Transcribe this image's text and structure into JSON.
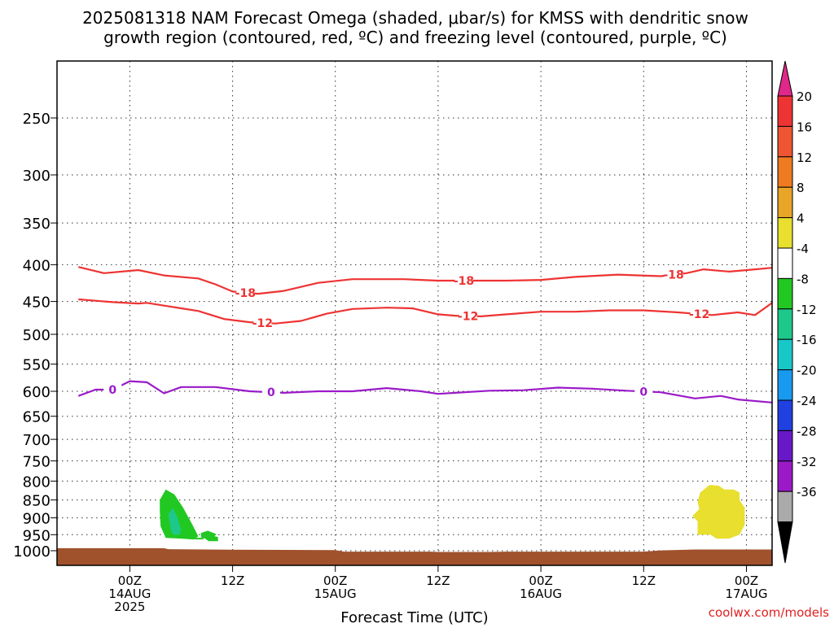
{
  "chart_data": {
    "type": "contour",
    "title_line1": "2025081318 NAM Forecast Omega (shaded, μbar/s) for KMSS with dendritic snow",
    "title_line2": "growth region (contoured, red, ºC) and freezing level (contoured, purple, ºC)",
    "xlabel": "Forecast Time (UTC)",
    "ylabel": "",
    "credit": "coolwx.com/models",
    "x_range_hours": [
      -8.5,
      75
    ],
    "y_log_scale": true,
    "y_range_hpa": [
      200,
      1030
    ],
    "grid": true,
    "y_ticks": [
      250,
      300,
      350,
      400,
      450,
      500,
      550,
      600,
      650,
      700,
      750,
      800,
      850,
      900,
      950,
      1000
    ],
    "x_ticks": [
      {
        "hour": 0,
        "line1": "00Z",
        "line2": "14AUG",
        "line3": "2025"
      },
      {
        "hour": 12,
        "line1": "12Z",
        "line2": "",
        "line3": ""
      },
      {
        "hour": 24,
        "line1": "00Z",
        "line2": "15AUG",
        "line3": ""
      },
      {
        "hour": 36,
        "line1": "12Z",
        "line2": "",
        "line3": ""
      },
      {
        "hour": 48,
        "line1": "00Z",
        "line2": "16AUG",
        "line3": ""
      },
      {
        "hour": 60,
        "line1": "12Z",
        "line2": "",
        "line3": ""
      },
      {
        "hour": 72,
        "line1": "00Z",
        "line2": "17AUG",
        "line3": ""
      }
    ],
    "series": [
      {
        "label": "-18",
        "color": "#ee3333",
        "label_hours": [
          13.5,
          39,
          63.5
        ],
        "points": [
          [
            -6,
            403
          ],
          [
            -3,
            411
          ],
          [
            1,
            407
          ],
          [
            4,
            414
          ],
          [
            8,
            418
          ],
          [
            10,
            426
          ],
          [
            12,
            436
          ],
          [
            15,
            439
          ],
          [
            18,
            435
          ],
          [
            22,
            424
          ],
          [
            26,
            419
          ],
          [
            32,
            419
          ],
          [
            36,
            421
          ],
          [
            40,
            421
          ],
          [
            44,
            421
          ],
          [
            48,
            420
          ],
          [
            52,
            416
          ],
          [
            57,
            413
          ],
          [
            62,
            415
          ],
          [
            65,
            411
          ],
          [
            67,
            406
          ],
          [
            70,
            409
          ],
          [
            73,
            406
          ],
          [
            75,
            404
          ]
        ]
      },
      {
        "label": "-12",
        "color": "#ee3333",
        "label_hours": [
          15.5,
          39.5,
          66.5
        ],
        "points": [
          [
            -6,
            447
          ],
          [
            -2,
            451
          ],
          [
            1,
            453
          ],
          [
            2,
            452
          ],
          [
            4,
            456
          ],
          [
            6,
            460
          ],
          [
            8,
            464
          ],
          [
            11,
            476
          ],
          [
            14,
            481
          ],
          [
            17,
            483
          ],
          [
            20,
            479
          ],
          [
            23,
            468
          ],
          [
            26,
            461
          ],
          [
            30,
            459
          ],
          [
            33,
            460
          ],
          [
            36,
            469
          ],
          [
            38,
            471
          ],
          [
            41,
            472
          ],
          [
            44,
            469
          ],
          [
            48,
            465
          ],
          [
            52,
            465
          ],
          [
            56,
            463
          ],
          [
            60,
            463
          ],
          [
            64,
            466
          ],
          [
            68,
            470
          ],
          [
            71,
            466
          ],
          [
            73,
            470
          ],
          [
            75,
            452
          ]
        ]
      },
      {
        "label": "0",
        "color": "#9a1ac8",
        "label_hours": [
          -2,
          16.5,
          60
        ],
        "points": [
          [
            -6,
            609
          ],
          [
            -4,
            597
          ],
          [
            -2,
            597
          ],
          [
            0,
            581
          ],
          [
            2,
            583
          ],
          [
            4,
            604
          ],
          [
            6,
            592
          ],
          [
            10,
            592
          ],
          [
            14,
            600
          ],
          [
            18,
            603
          ],
          [
            22,
            600
          ],
          [
            26,
            600
          ],
          [
            30,
            594
          ],
          [
            34,
            600
          ],
          [
            36,
            605
          ],
          [
            38,
            603
          ],
          [
            42,
            599
          ],
          [
            46,
            598
          ],
          [
            50,
            593
          ],
          [
            54,
            595
          ],
          [
            58,
            599
          ],
          [
            62,
            602
          ],
          [
            66,
            614
          ],
          [
            69,
            609
          ],
          [
            71,
            616
          ],
          [
            75,
            622
          ]
        ]
      }
    ],
    "shaded_regions": [
      {
        "color": "#22c822",
        "label": "omega -8 to -4",
        "points": [
          [
            3.5,
            850
          ],
          [
            4.2,
            822
          ],
          [
            5.2,
            835
          ],
          [
            6.2,
            870
          ],
          [
            7.2,
            915
          ],
          [
            8,
            955
          ],
          [
            7.5,
            965
          ],
          [
            6,
            962
          ],
          [
            4.2,
            960
          ],
          [
            3.6,
            925
          ],
          [
            3.5,
            880
          ]
        ]
      },
      {
        "color": "#1ec88a",
        "label": "omega -12 to -8",
        "points": [
          [
            4.5,
            890
          ],
          [
            5,
            872
          ],
          [
            5.5,
            895
          ],
          [
            6,
            935
          ],
          [
            5.8,
            950
          ],
          [
            5.1,
            950
          ],
          [
            4.8,
            935
          ],
          [
            4.6,
            905
          ]
        ]
      },
      {
        "color": "#22c822",
        "label": "omega -8 to -4",
        "points": [
          [
            8.3,
            945
          ],
          [
            9.1,
            938
          ],
          [
            10.1,
            948
          ],
          [
            9.9,
            955
          ],
          [
            10.3,
            957
          ],
          [
            10.3,
            970
          ],
          [
            9.2,
            970
          ],
          [
            8.8,
            962
          ],
          [
            8.3,
            958
          ]
        ]
      },
      {
        "color": "#e8df2e",
        "label": "omega 4 to 8",
        "points": [
          [
            66.6,
            830
          ],
          [
            67.7,
            810
          ],
          [
            68.8,
            812
          ],
          [
            69.4,
            822
          ],
          [
            70.5,
            822
          ],
          [
            71.2,
            830
          ],
          [
            71.2,
            850
          ],
          [
            71.8,
            872
          ],
          [
            71.8,
            920
          ],
          [
            71.2,
            950
          ],
          [
            70,
            962
          ],
          [
            68.5,
            962
          ],
          [
            67.8,
            950
          ],
          [
            66.3,
            950
          ],
          [
            66.3,
            910
          ],
          [
            65.7,
            895
          ],
          [
            66.5,
            875
          ],
          [
            66.3,
            855
          ]
        ]
      }
    ],
    "ground": {
      "color": "#a0522d",
      "points": [
        [
          -8.5,
          992
        ],
        [
          4,
          992
        ],
        [
          4.5,
          995
        ],
        [
          12,
          997
        ],
        [
          24,
          998
        ],
        [
          25,
          1003
        ],
        [
          35,
          1003
        ],
        [
          36,
          1004
        ],
        [
          42,
          1004
        ],
        [
          44,
          1003
        ],
        [
          60,
          1003
        ],
        [
          62,
          999
        ],
        [
          66,
          996
        ],
        [
          75,
          996
        ]
      ]
    },
    "colorbar": {
      "labels": [
        "20",
        "16",
        "12",
        "8",
        "4",
        "-4",
        "-8",
        "-12",
        "-16",
        "-20",
        "-24",
        "-28",
        "-32",
        "-36"
      ],
      "top_color": "#e0288a",
      "bottom_color": "#000000",
      "colors": [
        "#ee3333",
        "#ee5533",
        "#ee7a22",
        "#e8a528",
        "#e8df2e",
        "#ffffff",
        "#22c822",
        "#1ec88a",
        "#18c8c8",
        "#189af0",
        "#2040e0",
        "#6818c8",
        "#9a1ac8",
        "#aaaaaa"
      ]
    }
  }
}
